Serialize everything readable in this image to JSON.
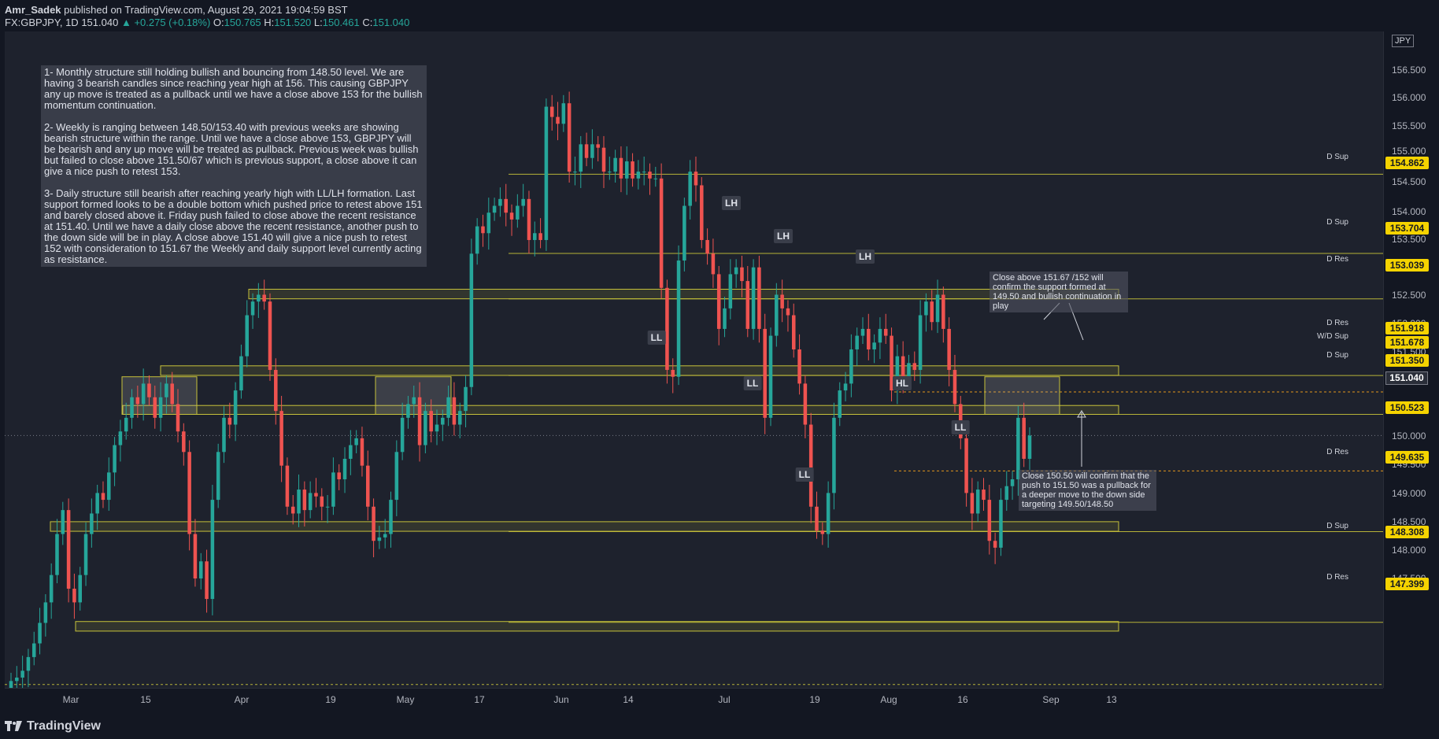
{
  "header": {
    "author": "Amr_Sadek",
    "published_text": "published on TradingView.com, August 29, 2021 19:04:59 BST",
    "symbol": "FX:GBPJPY, 1D",
    "last": "151.040",
    "change_arrow": "▲",
    "change": "+0.275 (+0.18%)",
    "open_label": "O:",
    "open": "150.765",
    "high_label": "H:",
    "high": "151.520",
    "low_label": "L:",
    "low": "150.461",
    "close_label": "C:",
    "close": "151.040"
  },
  "currency": "JPY",
  "yaxis": {
    "ticks": [
      "156.500",
      "156.000",
      "155.500",
      "155.000",
      "154.500",
      "154.000",
      "153.500",
      "152.500",
      "152.000",
      "151.500",
      "150.000",
      "149.500",
      "149.000",
      "148.500",
      "148.000",
      "147.500"
    ],
    "current_price": "151.040",
    "badges": [
      {
        "price": "154.862",
        "tag": "D Sup"
      },
      {
        "price": "153.704",
        "tag": "D Sup"
      },
      {
        "price": "153.039",
        "tag": "D Res"
      },
      {
        "price": "151.918",
        "tag": "D Res"
      },
      {
        "price": "151.678",
        "tag": "W/D Sup"
      },
      {
        "price": "151.350",
        "tag": "D Sup"
      },
      {
        "price": "150.523",
        "tag": ""
      },
      {
        "price": "149.635",
        "tag": "D Res"
      },
      {
        "price": "148.308",
        "tag": "D Sup"
      },
      {
        "price": "147.399",
        "tag": "D Res"
      }
    ]
  },
  "xaxis": {
    "ticks": [
      "Mar",
      "15",
      "Apr",
      "19",
      "May",
      "17",
      "Jun",
      "14",
      "Jul",
      "19",
      "Aug",
      "16",
      "Sep",
      "13"
    ]
  },
  "notes": {
    "main": "1- Monthly structure still holding bullish and bouncing from 148.50 level. We are having 3 bearish candles since reaching year high at 156. This causing GBPJPY any up move is treated as a pullback until we have a close above 153 for the bullish momentum continuation.\n\n2- Weekly is ranging between 148.50/153.40 with previous weeks are showing bearish structure within the range. Until we have a close above 153, GBPJPY will be bearish and any up move will be treated as pullback. Previous week was bullish but failed to close above 151.50/67 which is previous support, a close above it can give a nice push to retest 153.\n\n3- Daily structure still bearish after reaching yearly high with LL/LH formation. Last support formed looks to be a double bottom which pushed price to retest above 151 and barely closed above it. Friday push failed to close above the recent resistance at 151.40. Until we have a daily close above the recent resistance, another push to the down side will be in play. A close above 151.40 will give a nice push to retest 152 with consideration to 151.67 the Weekly and daily support level currently acting as resistance.",
    "upper_right": "Close above 151.67 /152 will confirm the support formed at 149.50 and bullish continuation in play",
    "lower_right": "Close 150.50 will confirm that the push to 151.50 was a pullback for a deeper move to the down side targeting 149.50/148.50"
  },
  "structure_labels": [
    "LH",
    "LH",
    "LH",
    "LL",
    "LL",
    "HL",
    "LL",
    "LL"
  ],
  "footer": {
    "logo_text": "TradingView"
  },
  "colors": {
    "bull": "#26a69a",
    "bear": "#ef5350",
    "level_line": "#c7c23a",
    "badge": "#f5d300",
    "dashed_orange": "#f7a21b",
    "background": "#1e222d"
  },
  "chart_data": {
    "type": "candlestick",
    "symbol": "FX:GBPJPY",
    "timeframe": "1D",
    "ylim": [
      147.35,
      156.95
    ],
    "levels": [
      154.862,
      153.704,
      153.039,
      151.918,
      151.678,
      151.35,
      150.523,
      149.635,
      148.308,
      147.399
    ],
    "closes": [
      147.45,
      147.5,
      147.6,
      147.8,
      148.0,
      148.3,
      148.6,
      149.0,
      149.6,
      149.95,
      148.8,
      148.6,
      149.0,
      149.6,
      149.9,
      150.2,
      150.1,
      150.5,
      150.9,
      151.1,
      151.3,
      151.6,
      151.5,
      151.8,
      151.6,
      151.3,
      151.6,
      151.8,
      151.5,
      151.1,
      150.8,
      149.6,
      148.95,
      149.2,
      148.65,
      150.1,
      150.8,
      151.3,
      151.2,
      151.7,
      152.2,
      152.8,
      153.0,
      153.1,
      153.0,
      152.0,
      151.4,
      150.6,
      150.0,
      149.9,
      150.25,
      149.95,
      150.2,
      150.15,
      150.0,
      150.0,
      150.5,
      150.4,
      150.7,
      150.9,
      151.0,
      150.6,
      150.0,
      149.5,
      149.55,
      149.6,
      150.1,
      150.8,
      151.3,
      151.5,
      151.6,
      150.9,
      151.4,
      151.1,
      151.2,
      151.3,
      151.6,
      151.2,
      151.4,
      151.75,
      153.7,
      154.1,
      154.0,
      154.3,
      154.4,
      154.5,
      154.3,
      154.2,
      154.4,
      154.5,
      153.9,
      154.0,
      153.9,
      155.85,
      155.7,
      155.6,
      155.9,
      154.9,
      154.9,
      155.3,
      155.1,
      155.3,
      155.25,
      154.9,
      154.9,
      155.1,
      154.8,
      155.05,
      154.8,
      154.9,
      154.9,
      154.8,
      154.8,
      153.2,
      152.0,
      151.9,
      153.6,
      154.4,
      154.9,
      154.7,
      153.9,
      153.7,
      153.4,
      152.6,
      152.9,
      153.4,
      153.5,
      153.3,
      152.6,
      153.5,
      152.6,
      151.3,
      152.5,
      153.1,
      152.9,
      152.8,
      152.3,
      151.8,
      151.2,
      150.0,
      149.65,
      149.6,
      150.2,
      151.3,
      151.7,
      151.8,
      152.3,
      152.5,
      152.6,
      152.3,
      152.4,
      152.6,
      152.5,
      151.7,
      152.2,
      151.9,
      152.1,
      152.0,
      152.8,
      153.0,
      152.7,
      153.1,
      152.6,
      152.0,
      151.5,
      151.0,
      150.2,
      149.9,
      150.25,
      150.1,
      149.5,
      149.4,
      150.1,
      150.3,
      150.4,
      151.3,
      150.7,
      151.04
    ]
  }
}
